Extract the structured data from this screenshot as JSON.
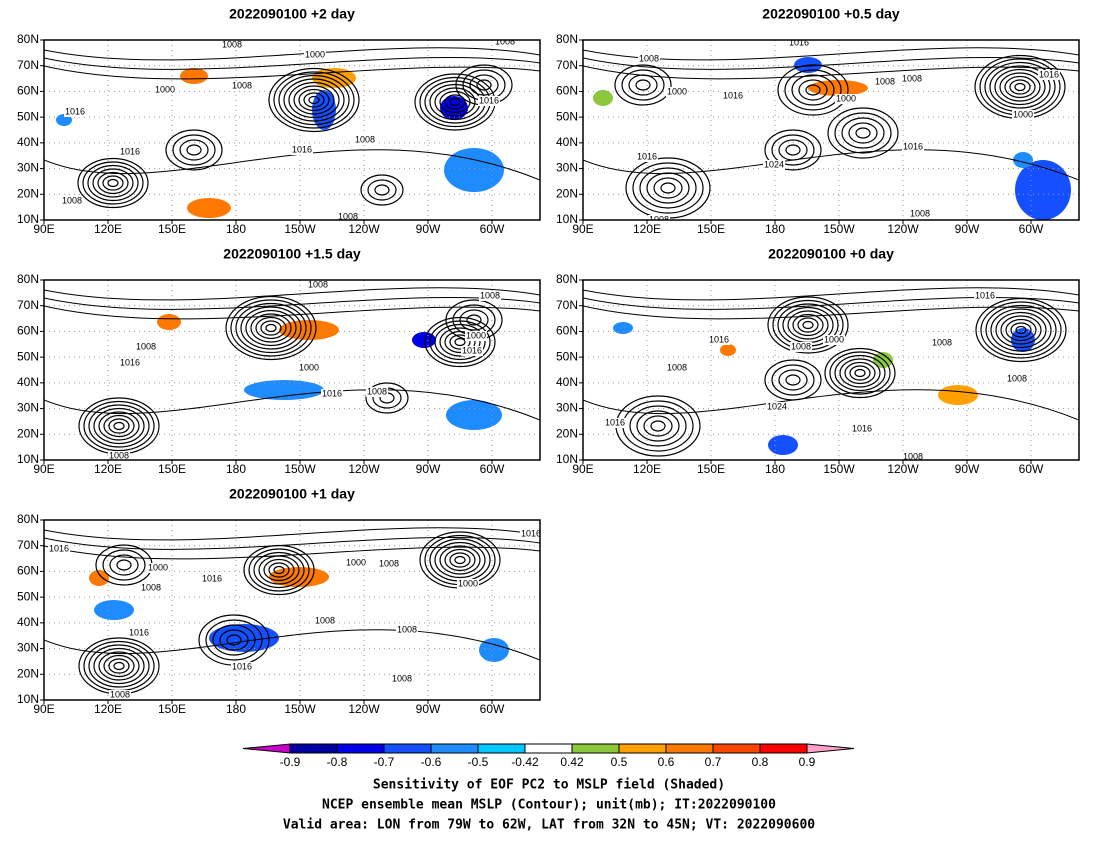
{
  "panels": [
    {
      "title": "2022090100 +2 day",
      "contour_labels": [
        "1008",
        "1000",
        "1008",
        "1000",
        "1008",
        "1016",
        "1016",
        "1008",
        "1016",
        "1016",
        "1008",
        "1008"
      ]
    },
    {
      "title": "2022090100 +0.5 day",
      "contour_labels": [
        "1016",
        "1008",
        "1008",
        "1008",
        "1000",
        "1016",
        "1000",
        "1016",
        "1000",
        "1016",
        "1016",
        "1024",
        "1008",
        "1008"
      ]
    },
    {
      "title": "2022090100 +1.5 day",
      "contour_labels": [
        "1008",
        "1008",
        "1008",
        "1016",
        "1000",
        "1016",
        "1000",
        "1016",
        "1008",
        "1008"
      ]
    },
    {
      "title": "2022090100 +0 day",
      "contour_labels": [
        "1016",
        "1016",
        "1008",
        "1000",
        "1008",
        "1008",
        "1008",
        "1024",
        "1016",
        "1016",
        "1008"
      ]
    },
    {
      "title": "2022090100 +1 day",
      "contour_labels": [
        "1016",
        "1016",
        "1000",
        "1000",
        "1008",
        "1016",
        "1008",
        "1000",
        "1008",
        "1016",
        "1008",
        "1016",
        "1008",
        "1008"
      ]
    }
  ],
  "lat_ticks": [
    "80N",
    "70N",
    "60N",
    "50N",
    "40N",
    "30N",
    "20N",
    "10N"
  ],
  "lon_ticks": [
    "90E",
    "120E",
    "150E",
    "180",
    "150W",
    "120W",
    "90W",
    "60W"
  ],
  "colorbar": {
    "levels": [
      -0.9,
      -0.8,
      -0.7,
      -0.6,
      -0.5,
      -0.42,
      0.42,
      0.5,
      0.6,
      0.7,
      0.8,
      0.9
    ],
    "colors": [
      "#c800c8",
      "#0000a0",
      "#0000e6",
      "#1450ff",
      "#1e8cff",
      "#00c8ff",
      "#ffffff",
      "#8cc83c",
      "#ffa000",
      "#ff7800",
      "#ff4600",
      "#ff0000",
      "#ffa0c8"
    ]
  },
  "caption": [
    "Sensitivity of EOF PC2 to MSLP field (Shaded)",
    "NCEP ensemble mean MSLP (Contour); unit(mb); IT:2022090100",
    "Valid area: LON from 79W to 62W, LAT from 32N to 45N; VT: 2022090600"
  ]
}
